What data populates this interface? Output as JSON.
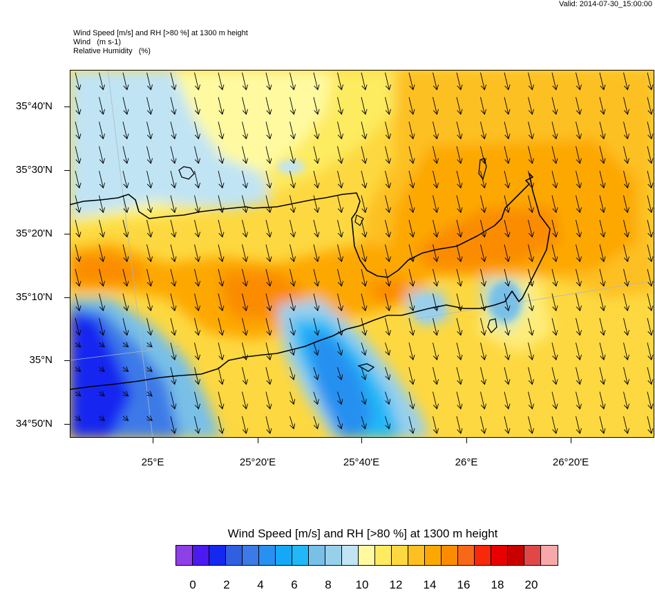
{
  "valid_time": "Valid: 2014-07-30_15:00:00",
  "header": {
    "line1": "Wind Speed [m/s] and RH [>80 %] at 1300 m height",
    "line2": "Wind   (m s-1)",
    "line3": "Relative Humidity   (%)"
  },
  "map": {
    "lat_labels": [
      "35°40'N",
      "35°30'N",
      "35°20'N",
      "35°10'N",
      "35°N",
      "34°50'N"
    ],
    "lon_labels": [
      "25°E",
      "25°20'E",
      "25°40'E",
      "26°E",
      "26°20'E"
    ],
    "wind_direction": "north-west to south-east"
  },
  "colorbar": {
    "title": "Wind Speed [m/s] and RH [>80 %] at 1300 m height",
    "colors": [
      "#8f3fe8",
      "#4a1af0",
      "#1428f0",
      "#3060e0",
      "#3c7ae8",
      "#2890f0",
      "#14a8f8",
      "#20b8f8",
      "#78c0e8",
      "#98d0ec",
      "#c0e4f4",
      "#fffaa0",
      "#fdeb60",
      "#fdd840",
      "#fdc020",
      "#fda800",
      "#fb8c00",
      "#f86818",
      "#f82808",
      "#e80000",
      "#c80000",
      "#e04848",
      "#f8a8a8"
    ],
    "labels": [
      "0",
      "2",
      "4",
      "6",
      "8",
      "10",
      "12",
      "14",
      "16",
      "18",
      "20"
    ]
  }
}
